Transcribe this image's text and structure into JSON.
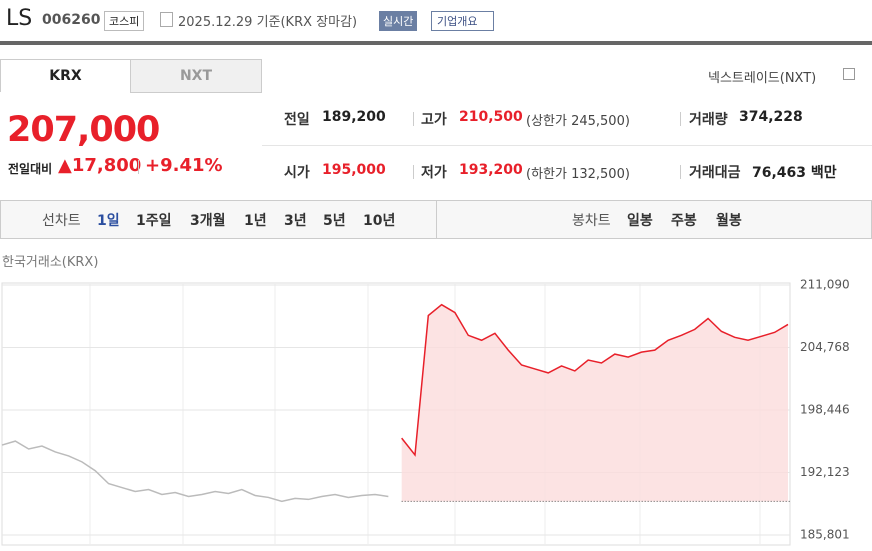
{
  "header": {
    "name": "LS",
    "code": "006260",
    "market": "코스피",
    "date": "2025.12.29 기준(KRX 장마감)",
    "realtime": "실시간",
    "overview": "기업개요"
  },
  "tabs": [
    "KRX",
    "NXT"
  ],
  "nxt_link": "넥스트레이드(NXT)",
  "price": {
    "current": "207,000",
    "change_label": "전일대비",
    "change": "17,800",
    "change_rate": "+9.41%"
  },
  "stats": [
    {
      "label": "전일",
      "value": "189,200"
    },
    {
      "label": "고가",
      "value": "210,500",
      "note": "(상한가 245,500)"
    },
    {
      "label": "거래량",
      "value": "374,228"
    },
    {
      "label": "시가",
      "value": "195,000"
    },
    {
      "label": "저가",
      "value": "193,200",
      "note": "(하한가 132,500)"
    },
    {
      "label": "거래대금",
      "value": "76,463",
      "unit": "백만"
    }
  ],
  "periods": {
    "line_label": "선차트",
    "line": [
      "1일",
      "1주일",
      "3개월",
      "1년",
      "3년",
      "5년",
      "10년"
    ],
    "candle_label": "봉차트",
    "candle": [
      "일봉",
      "주봉",
      "월봉"
    ]
  },
  "chart_data": {
    "type": "line",
    "title": "한국거래소(KRX)",
    "categories": [
      null,
      null,
      null,
      null,
      null,
      null,
      null,
      null,
      null,
      null,
      null,
      null,
      null,
      null,
      null,
      null,
      null,
      null,
      null,
      null,
      null,
      null,
      null,
      null,
      null,
      null,
      null,
      null,
      null,
      null,
      null,
      null,
      null,
      null,
      null,
      null,
      null,
      null,
      null,
      null,
      null,
      null,
      null,
      null,
      null,
      null,
      null,
      null,
      null,
      null,
      null,
      null,
      null,
      null,
      null,
      null,
      null,
      null,
      null,
      null
    ],
    "series": [
      {
        "color": "#bbbbbb",
        "values": [
          194900,
          195300,
          194500,
          194800,
          194200,
          193800,
          193200,
          192300,
          191000,
          190600,
          190200,
          190400,
          189900,
          190100,
          189700,
          189900,
          190200,
          190000,
          190400,
          189800,
          189600,
          189200,
          189500,
          189400,
          189700,
          189900,
          189600,
          189800,
          189900,
          189700,
          null,
          null,
          null,
          null,
          null,
          null,
          null,
          null,
          null,
          null,
          null,
          null,
          null,
          null,
          null,
          null,
          null,
          null,
          null,
          null,
          null,
          null,
          null,
          null,
          null,
          null,
          null,
          null,
          null,
          null
        ]
      },
      {
        "color": "#e8202a",
        "values": [
          null,
          null,
          null,
          null,
          null,
          null,
          null,
          null,
          null,
          null,
          null,
          null,
          null,
          null,
          null,
          null,
          null,
          null,
          null,
          null,
          null,
          null,
          null,
          null,
          null,
          null,
          null,
          null,
          null,
          null,
          195600,
          193900,
          208000,
          209100,
          208300,
          206000,
          205500,
          206200,
          204500,
          203000,
          202600,
          202200,
          202900,
          202400,
          203500,
          203200,
          204100,
          203800,
          204300,
          204500,
          205500,
          206000,
          206600,
          207700,
          206400,
          205800,
          205500,
          205900,
          206300,
          207100
        ]
      }
    ],
    "reference_line": 189200,
    "ylim": [
      185801,
      211090
    ],
    "yticks": [
      {
        "value": 211090,
        "label": "211,090"
      },
      {
        "value": 204768,
        "label": "204,768"
      },
      {
        "value": 198446,
        "label": "198,446"
      },
      {
        "value": 192123,
        "label": "192,123"
      },
      {
        "value": 185801,
        "label": "185,801"
      }
    ],
    "grid": true
  }
}
